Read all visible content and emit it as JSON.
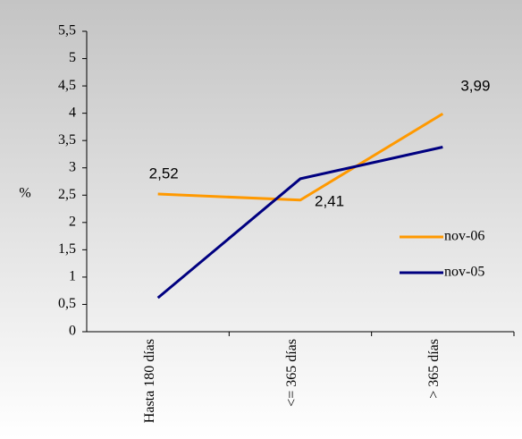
{
  "chart_data": {
    "type": "line",
    "ylabel": "%",
    "categories": [
      "Hasta 180 días",
      "<= 365 días",
      "> 365 días"
    ],
    "series": [
      {
        "name": "nov-06",
        "color": "#ff9900",
        "values": [
          2.52,
          2.41,
          3.99
        ],
        "value_labels": [
          "2,52",
          "2,41",
          "3,99"
        ]
      },
      {
        "name": "nov-05",
        "color": "#000080",
        "values": [
          0.62,
          2.8,
          3.38
        ]
      }
    ],
    "ylim": [
      0,
      5.5
    ],
    "yticks": [
      0,
      {
        "value": 0.5,
        "label": "0,5"
      },
      1,
      {
        "value": 1.5,
        "label": "1,5"
      },
      2,
      {
        "value": 2.5,
        "label": "2,5"
      },
      3,
      {
        "value": 3.5,
        "label": "3,5"
      },
      4,
      {
        "value": 4.5,
        "label": "4,5"
      },
      5,
      {
        "value": 5.5,
        "label": "5,5"
      }
    ],
    "legend": "right"
  }
}
